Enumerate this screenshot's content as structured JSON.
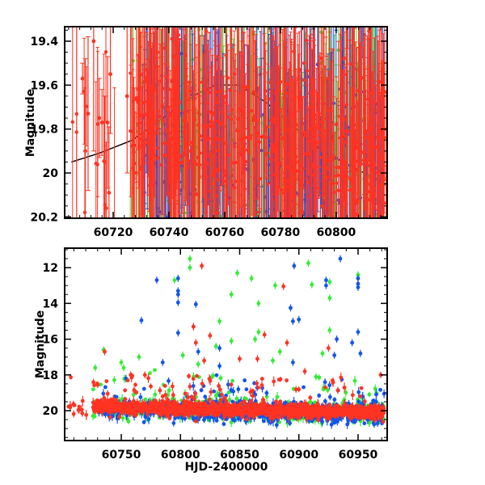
{
  "chart_data": [
    {
      "type": "scatter",
      "panel": "top",
      "title": "",
      "xlabel": "",
      "ylabel": "Magnitude",
      "xlim": [
        60702.6,
        60818.3
      ],
      "ylim": [
        20.206,
        19.334
      ],
      "y_inverted": true,
      "xticks": [
        60720,
        60740,
        60760,
        60780,
        60800
      ],
      "xtick_labels": [
        "60720",
        "60740",
        "60760",
        "60780",
        "60800"
      ],
      "yticks": [
        19.4,
        19.6,
        19.8,
        20,
        20.2
      ],
      "ytick_labels": [
        "19.4",
        "19.6",
        "19.8",
        "20",
        "20.2"
      ],
      "grid": false,
      "model_curve": [
        [
          60705,
          19.95
        ],
        [
          60715,
          19.91
        ],
        [
          60727,
          19.85
        ],
        [
          60740,
          19.73
        ],
        [
          60750,
          19.64
        ],
        [
          60757,
          19.6
        ],
        [
          60765,
          19.6
        ],
        [
          60775,
          19.68
        ],
        [
          60784,
          19.78
        ],
        [
          60795,
          19.9
        ],
        [
          60810,
          20.0
        ],
        [
          60818,
          20.05
        ]
      ],
      "early_points": [
        [
          60709,
          19.57,
          0.07
        ],
        [
          60710,
          19.9,
          0.42
        ],
        [
          60711,
          19.73,
          0.35
        ],
        [
          60713,
          19.4,
          0.5
        ],
        [
          60715,
          19.75,
          0.18
        ],
        [
          60716,
          19.77,
          0.15
        ],
        [
          60717,
          19.95,
          0.3
        ],
        [
          60717.5,
          20.16,
          0.3
        ],
        [
          60718,
          19.77,
          0.3
        ],
        [
          60718.5,
          20.09,
          0.3
        ],
        [
          60719,
          19.55,
          0.27
        ],
        [
          60725,
          19.65,
          0.35
        ]
      ]
    },
    {
      "type": "scatter",
      "panel": "bottom",
      "title": "",
      "xlabel": "HJD-2400000",
      "ylabel": "Magnitude",
      "xlim": [
        60702.2,
        60974.6
      ],
      "ylim": [
        21.67,
        10.91
      ],
      "y_inverted": true,
      "xticks": [
        60750,
        60800,
        60850,
        60900,
        60950
      ],
      "xtick_labels": [
        "60750",
        "60800",
        "60850",
        "60900",
        "60950"
      ],
      "yticks": [
        12,
        14,
        16,
        18,
        20
      ],
      "ytick_labels": [
        "12",
        "14",
        "16",
        "18",
        "20"
      ],
      "grid": false,
      "series": [
        {
          "name": "green band",
          "color": "#33ee33",
          "baseline_segments": [
            [
              60726,
              60972,
              19.85,
              20.15,
              0.45,
              700
            ]
          ],
          "outliers": [
            [
              60808,
              11.5
            ],
            [
              60808,
              12
            ],
            [
              60795,
              12.7
            ],
            [
              60848,
              12.3
            ],
            [
              60860,
              12.6
            ],
            [
              60843,
              13.5
            ],
            [
              60866,
              14
            ],
            [
              60880,
              13
            ],
            [
              60908,
              11.75
            ],
            [
              60911,
              12.95
            ],
            [
              60926,
              12.8
            ],
            [
              60926,
              13.7
            ],
            [
              60833,
              15
            ],
            [
              60843,
              16.1
            ],
            [
              60866,
              15.6
            ],
            [
              60863,
              16
            ],
            [
              60830,
              16.4
            ],
            [
              60926,
              15.5
            ],
            [
              60950,
              12.4
            ],
            [
              60735,
              16.6
            ],
            [
              60750,
              17.3
            ],
            [
              60765,
              17
            ],
            [
              60728,
              17.6
            ],
            [
              60752,
              17.6
            ],
            [
              60802,
              16.9
            ],
            [
              60815,
              17.4
            ],
            [
              60878,
              17.2
            ],
            [
              60884,
              16.7
            ],
            [
              60920,
              16.8
            ]
          ]
        },
        {
          "name": "blue band",
          "color": "#1155ee",
          "baseline_segments": [
            [
              60730,
              60972,
              19.9,
              20.2,
              0.45,
              800
            ]
          ],
          "outliers": [
            [
              60767,
              14.95
            ],
            [
              60780,
              12.7
            ],
            [
              60798,
              12.6
            ],
            [
              60798,
              13.3
            ],
            [
              60798,
              13.5
            ],
            [
              60798,
              13.95
            ],
            [
              60798,
              15.65
            ],
            [
              60813,
              14.05
            ],
            [
              60811,
              15.3
            ],
            [
              60896,
              11.9
            ],
            [
              60893,
              14.25
            ],
            [
              60895,
              15
            ],
            [
              60900,
              14.9
            ],
            [
              60923,
              12.7
            ],
            [
              60923,
              13
            ],
            [
              60935,
              11.5
            ],
            [
              60950,
              12.6
            ],
            [
              60950,
              12.9
            ],
            [
              60950,
              13.1
            ],
            [
              60833,
              16.5
            ],
            [
              60932,
              16
            ],
            [
              60950,
              15.6
            ],
            [
              60945,
              16.2
            ],
            [
              60785,
              17.3
            ],
            [
              60815,
              16.7
            ],
            [
              60833,
              17.5
            ],
            [
              60895,
              17.3
            ],
            [
              60930,
              16.9
            ],
            [
              60952,
              16.8
            ]
          ]
        },
        {
          "name": "red band",
          "color": "#ff3322",
          "baseline_segments": [
            [
              60705,
              60722,
              19.75,
              19.95,
              0.35,
              14
            ],
            [
              60726,
              60972,
              19.8,
              20.1,
              0.28,
              1500
            ]
          ],
          "outliers": [
            [
              60818,
              11.9
            ],
            [
              60887,
              13.05
            ],
            [
              60736,
              16.7
            ],
            [
              60811,
              15.3
            ],
            [
              60813,
              16.2
            ],
            [
              60825,
              15.8
            ],
            [
              60871,
              15.75
            ],
            [
              60890,
              16.2
            ],
            [
              60925,
              16.5
            ],
            [
              60850,
              17.1
            ],
            [
              60905,
              17.8
            ],
            [
              60758,
              18.0
            ],
            [
              60770,
              18.0
            ],
            [
              60820,
              17.2
            ],
            [
              60865,
              17.1
            ]
          ]
        }
      ]
    }
  ]
}
